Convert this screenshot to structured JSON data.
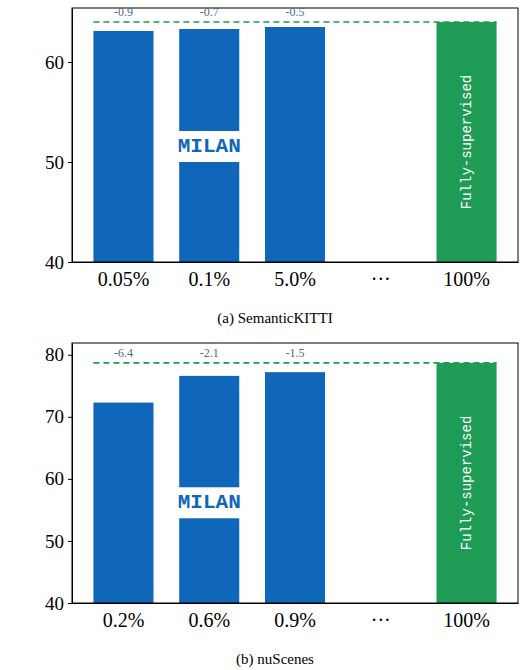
{
  "chart_data": [
    {
      "type": "bar",
      "title": "(a) SemanticKITTI",
      "categories": [
        "0.05%",
        "0.1%",
        "5.0%",
        "···",
        "100%"
      ],
      "series": [
        {
          "name": "MILAN",
          "color": "#1066b8",
          "values": [
            63.1,
            63.3,
            63.5,
            null,
            null
          ]
        },
        {
          "name": "Fully-supervised",
          "color": "#1e9b55",
          "values": [
            null,
            null,
            null,
            null,
            64.0
          ]
        }
      ],
      "annotations": [
        {
          "category": "0.05%",
          "text": "-0.9"
        },
        {
          "category": "0.1%",
          "text": "-0.7"
        },
        {
          "category": "5.0%",
          "text": "-0.5"
        }
      ],
      "ylim": [
        40,
        65.4
      ],
      "yticks": [
        40,
        50,
        60
      ]
    },
    {
      "type": "bar",
      "title": "(b) nuScenes",
      "categories": [
        "0.2%",
        "0.6%",
        "0.9%",
        "···",
        "100%"
      ],
      "series": [
        {
          "name": "MILAN",
          "color": "#1066b8",
          "values": [
            72.3,
            76.6,
            77.2,
            null,
            null
          ]
        },
        {
          "name": "Fully-supervised",
          "color": "#1e9b55",
          "values": [
            null,
            null,
            null,
            null,
            78.7
          ]
        }
      ],
      "annotations": [
        {
          "category": "0.2%",
          "text": "-6.4"
        },
        {
          "category": "0.6%",
          "text": "-2.1"
        },
        {
          "category": "0.9%",
          "text": "-1.5"
        }
      ],
      "ylim": [
        40,
        81.9
      ],
      "yticks": [
        40,
        50,
        60,
        70,
        80
      ]
    }
  ]
}
